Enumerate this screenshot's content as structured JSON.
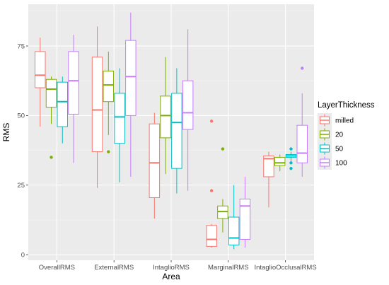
{
  "chart_data": {
    "type": "boxplot",
    "xlabel": "Area",
    "ylabel": "RMS",
    "ylim": [
      -2,
      90
    ],
    "yticks": [
      0,
      25,
      50,
      75
    ],
    "grid": true,
    "legend": {
      "title": "LayerThickness",
      "position": "right"
    },
    "categories": [
      "OverallRMS",
      "ExternalRMS",
      "IntaglioRMS",
      "MarginalRMS",
      "IntaglioOcclusalRMS"
    ],
    "series": [
      {
        "name": "milled",
        "color": "#f8766d",
        "boxes": [
          {
            "min": 46,
            "q1": 60,
            "median": 64.5,
            "q3": 73,
            "max": 78,
            "outliers": []
          },
          {
            "min": 24,
            "q1": 37,
            "median": 52,
            "q3": 71,
            "max": 82,
            "outliers": []
          },
          {
            "min": 13,
            "q1": 20.5,
            "median": 33,
            "q3": 47,
            "max": 51,
            "outliers": []
          },
          {
            "min": 2.5,
            "q1": 3,
            "median": 5.5,
            "q3": 10.5,
            "max": 11,
            "outliers": [
              48,
              23
            ]
          },
          {
            "min": 17,
            "q1": 28,
            "median": 34.5,
            "q3": 35.5,
            "max": 37,
            "outliers": []
          }
        ]
      },
      {
        "name": "20",
        "color": "#7cae00",
        "boxes": [
          {
            "min": 47,
            "q1": 53,
            "median": 59.5,
            "q3": 63,
            "max": 64,
            "outliers": [
              35
            ]
          },
          {
            "min": 43,
            "q1": 55,
            "median": 61,
            "q3": 66,
            "max": 73,
            "outliers": [
              37
            ]
          },
          {
            "min": 29,
            "q1": 42,
            "median": 50,
            "q3": 57,
            "max": 71,
            "outliers": []
          },
          {
            "min": 8,
            "q1": 13,
            "median": 15.5,
            "q3": 17.5,
            "max": 20,
            "outliers": [
              38
            ]
          },
          {
            "min": 30,
            "q1": 32,
            "median": 33,
            "q3": 35,
            "max": 36,
            "outliers": []
          }
        ]
      },
      {
        "name": "50",
        "color": "#00bfc4",
        "boxes": [
          {
            "min": 40,
            "q1": 46,
            "median": 55,
            "q3": 62,
            "max": 64,
            "outliers": []
          },
          {
            "min": 26,
            "q1": 40,
            "median": 49.5,
            "q3": 58,
            "max": 67,
            "outliers": []
          },
          {
            "min": 22,
            "q1": 31,
            "median": 47.5,
            "q3": 58,
            "max": 67,
            "outliers": []
          },
          {
            "min": 2,
            "q1": 3.5,
            "median": 6,
            "q3": 13.5,
            "max": 25,
            "outliers": []
          },
          {
            "min": 33,
            "q1": 35,
            "median": 35.5,
            "q3": 36,
            "max": 37,
            "outliers": [
              38,
              33,
              31
            ]
          }
        ]
      },
      {
        "name": "100",
        "color": "#c77cff",
        "boxes": [
          {
            "min": 33,
            "q1": 50.5,
            "median": 62.5,
            "q3": 73,
            "max": 79,
            "outliers": []
          },
          {
            "min": 28,
            "q1": 50,
            "median": 64,
            "q3": 77,
            "max": 87,
            "outliers": []
          },
          {
            "min": 23,
            "q1": 45,
            "median": 51,
            "q3": 62.5,
            "max": 81,
            "outliers": []
          },
          {
            "min": 2.5,
            "q1": 5.5,
            "median": 17.5,
            "q3": 20,
            "max": 28,
            "outliers": []
          },
          {
            "min": 28,
            "q1": 33,
            "median": 36.5,
            "q3": 46.5,
            "max": 58,
            "outliers": [
              67
            ]
          }
        ]
      }
    ]
  }
}
